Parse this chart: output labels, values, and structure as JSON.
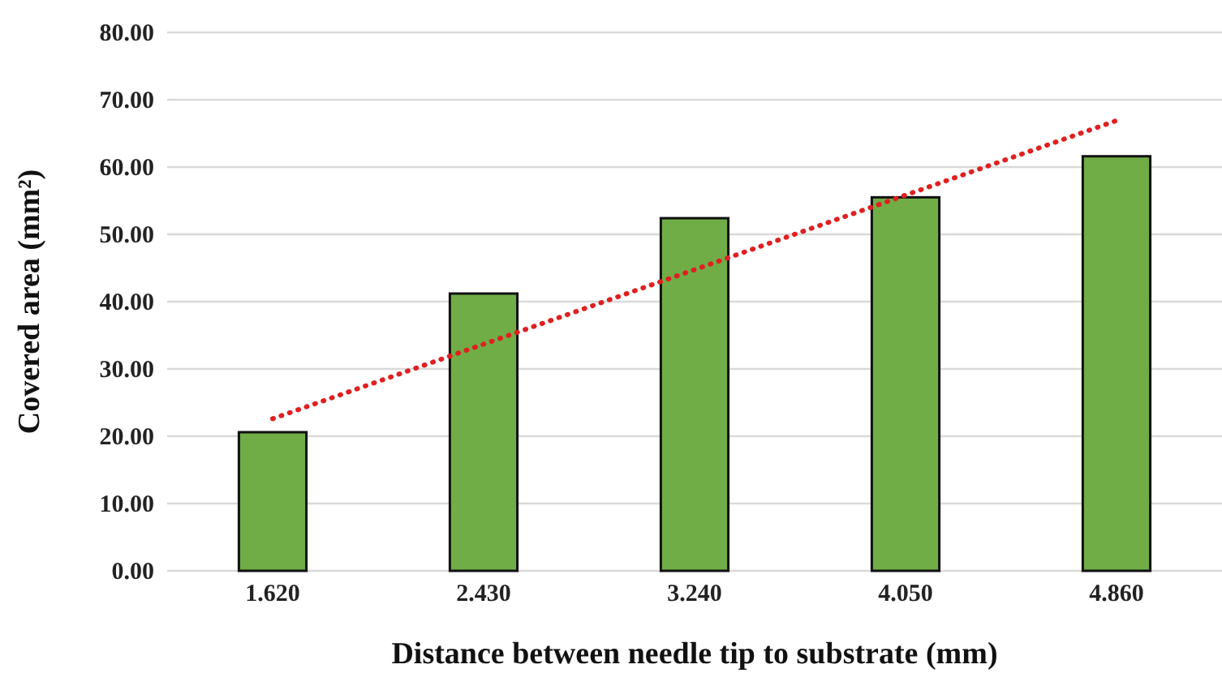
{
  "chart_data": {
    "type": "bar",
    "xlabel": "Distance between needle tip to substrate (mm)",
    "ylabel": "Covered area (mm²)",
    "categories": [
      "1.620",
      "2.430",
      "3.240",
      "4.050",
      "4.860"
    ],
    "series": [
      {
        "color": "#70ad47",
        "values": [
          20.6,
          41.2,
          52.4,
          55.5,
          61.6
        ]
      },
      {
        "type": "line",
        "color": "#e02020",
        "line_style": "dotted",
        "x": [
          "1.620",
          "4.860"
        ],
        "values": [
          22.6,
          66.9
        ]
      }
    ],
    "ylim": [
      0,
      80
    ],
    "yticks": [
      {
        "value": 0,
        "label": "0.00"
      },
      {
        "value": 10,
        "label": "10.00"
      },
      {
        "value": 20,
        "label": "20.00"
      },
      {
        "value": 30,
        "label": "30.00"
      },
      {
        "value": 40,
        "label": "40.00"
      },
      {
        "value": 50,
        "label": "50.00"
      },
      {
        "value": 60,
        "label": "60.00"
      },
      {
        "value": 70,
        "label": "70.00"
      },
      {
        "value": 80,
        "label": "80.00"
      }
    ],
    "grid": "y"
  }
}
